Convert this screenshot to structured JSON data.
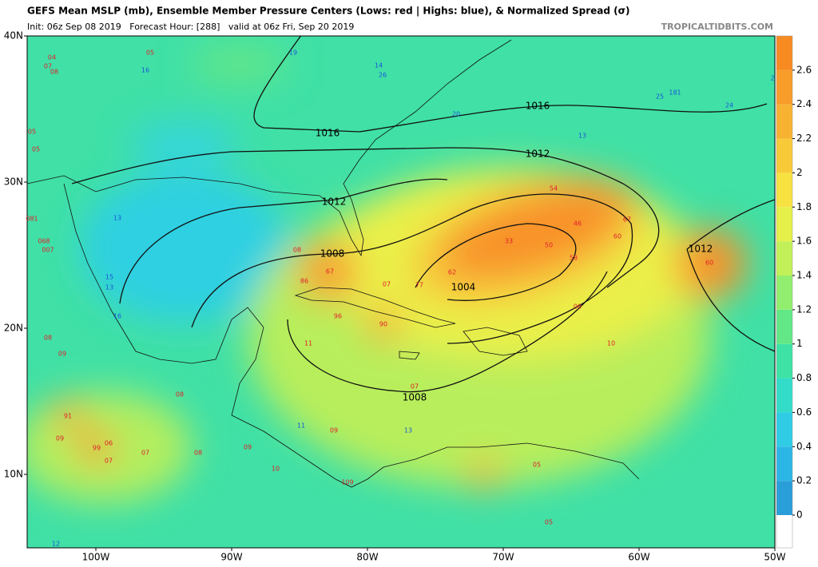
{
  "header": {
    "title": "GEFS Mean MSLP (mb), Ensemble Member Pressure Centers (Lows: red | Highs: blue), & Normalized Spread (σ)",
    "subtitle": "Init: 06z Sep 08 2019   Forecast Hour: [288]   valid at 06z Fri, Sep 20 2019",
    "site": "TROPICALTIDBITS.COM"
  },
  "map": {
    "lat_ticks": [
      {
        "value": 40,
        "label": "40N"
      },
      {
        "value": 30,
        "label": "30N"
      },
      {
        "value": 20,
        "label": "20N"
      },
      {
        "value": 10,
        "label": "10N"
      }
    ],
    "lon_ticks": [
      {
        "value": -100,
        "label": "100W"
      },
      {
        "value": -90,
        "label": "90W"
      },
      {
        "value": -80,
        "label": "80W"
      },
      {
        "value": -70,
        "label": "70W"
      },
      {
        "value": -60,
        "label": "60W"
      },
      {
        "value": -50,
        "label": "50W"
      }
    ],
    "contour_labels": [
      1016,
      1016,
      1012,
      1012,
      1012,
      1008,
      1008,
      1004
    ],
    "lows": [
      "04",
      "07",
      "08",
      "05",
      "05",
      "05",
      "081",
      "068",
      "007",
      "67",
      "86",
      "08",
      "07",
      "96",
      "90",
      "11",
      "77",
      "62",
      "33",
      "50",
      "54",
      "46",
      "67",
      "60",
      "58",
      "00",
      "60",
      "10",
      "07",
      "91",
      "99",
      "06",
      "07",
      "09",
      "07",
      "08",
      "09",
      "10",
      "09",
      "109",
      "05",
      "05",
      "08",
      "09",
      "08"
    ],
    "highs": [
      "19",
      "14",
      "26",
      "20",
      "13",
      "25",
      "181",
      "24",
      "16",
      "13",
      "15",
      "13",
      "16",
      "13",
      "12",
      "11",
      "2"
    ]
  },
  "colorbar": {
    "range": [
      0,
      2.8
    ],
    "ticks": [
      0,
      0.2,
      0.4,
      0.6,
      0.8,
      1,
      1.2,
      1.4,
      1.6,
      1.8,
      2,
      2.2,
      2.4,
      2.6
    ],
    "colors": [
      "#2a9ed8",
      "#2cb6e6",
      "#30cce6",
      "#32dcc8",
      "#3ee2a4",
      "#62e886",
      "#92ee6e",
      "#c2f058",
      "#e6f04a",
      "#f8e242",
      "#f8ca3a",
      "#f8b232",
      "#f89c2a",
      "#f88a22"
    ]
  }
}
